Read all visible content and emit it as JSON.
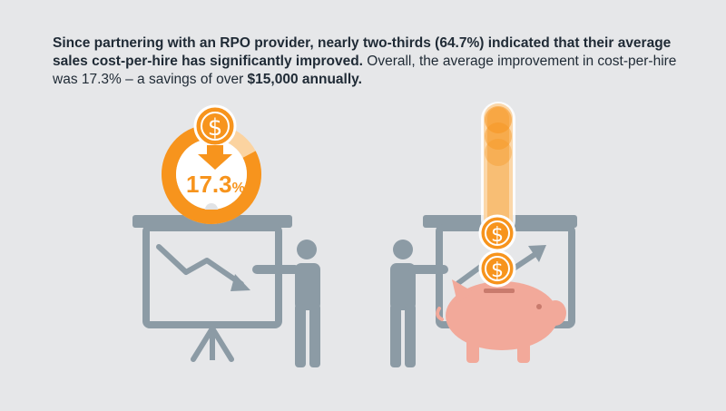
{
  "headline": {
    "part1_bold": "Since partnering with an RPO provider, nearly two-thirds (64.7%) indicated that their average sales cost-per-hire has significantly improved.",
    "part2_regular": " Overall, the average improvement in cost-per-hire was 17.3% – a savings of over ",
    "part3_bold": "$15,000 annually."
  },
  "left_panel": {
    "stat_value": "17.3",
    "stat_unit": "%",
    "coin_symbol": "$",
    "ring_fill_fraction": 0.827
  },
  "right_panel": {
    "coin_symbol": "$",
    "coin_count_visible": 2
  },
  "colors": {
    "background": "#e6e7e9",
    "accent_orange": "#f7941d",
    "accent_orange_light": "#fbd3a0",
    "slate_gray": "#8c9ba5",
    "piggy_pink": "#f2a99a",
    "text_dark": "#1f2a35"
  }
}
